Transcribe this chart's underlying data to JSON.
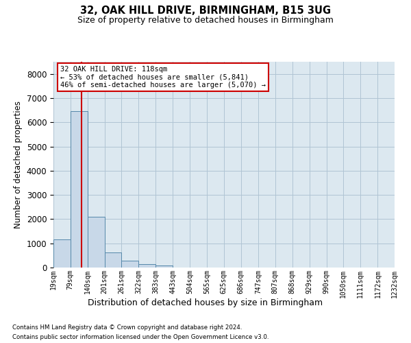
{
  "title1": "32, OAK HILL DRIVE, BIRMINGHAM, B15 3UG",
  "title2": "Size of property relative to detached houses in Birmingham",
  "xlabel": "Distribution of detached houses by size in Birmingham",
  "ylabel": "Number of detached properties",
  "footnote1": "Contains HM Land Registry data © Crown copyright and database right 2024.",
  "footnote2": "Contains public sector information licensed under the Open Government Licence v3.0.",
  "annotation_line1": "32 OAK HILL DRIVE: 118sqm",
  "annotation_line2": "← 53% of detached houses are smaller (5,841)",
  "annotation_line3": "46% of semi-detached houses are larger (5,070) →",
  "property_size": 118,
  "bin_edges": [
    19,
    79,
    140,
    201,
    261,
    322,
    383,
    443,
    504,
    565,
    625,
    686,
    747,
    807,
    868,
    929,
    990,
    1050,
    1111,
    1172,
    1232
  ],
  "bar_heights": [
    1150,
    6450,
    2100,
    620,
    270,
    130,
    80,
    0,
    0,
    0,
    0,
    0,
    0,
    0,
    0,
    0,
    0,
    0,
    0,
    0
  ],
  "bar_color": "#c8d8e8",
  "bar_edge_color": "#5588aa",
  "vline_color": "#cc0000",
  "vline_x": 118,
  "annotation_box_color": "#cc0000",
  "background_color": "#ffffff",
  "axes_bg_color": "#dce8f0",
  "grid_color": "#b0c4d4",
  "ylim": [
    0,
    8500
  ],
  "yticks": [
    0,
    1000,
    2000,
    3000,
    4000,
    5000,
    6000,
    7000,
    8000
  ]
}
